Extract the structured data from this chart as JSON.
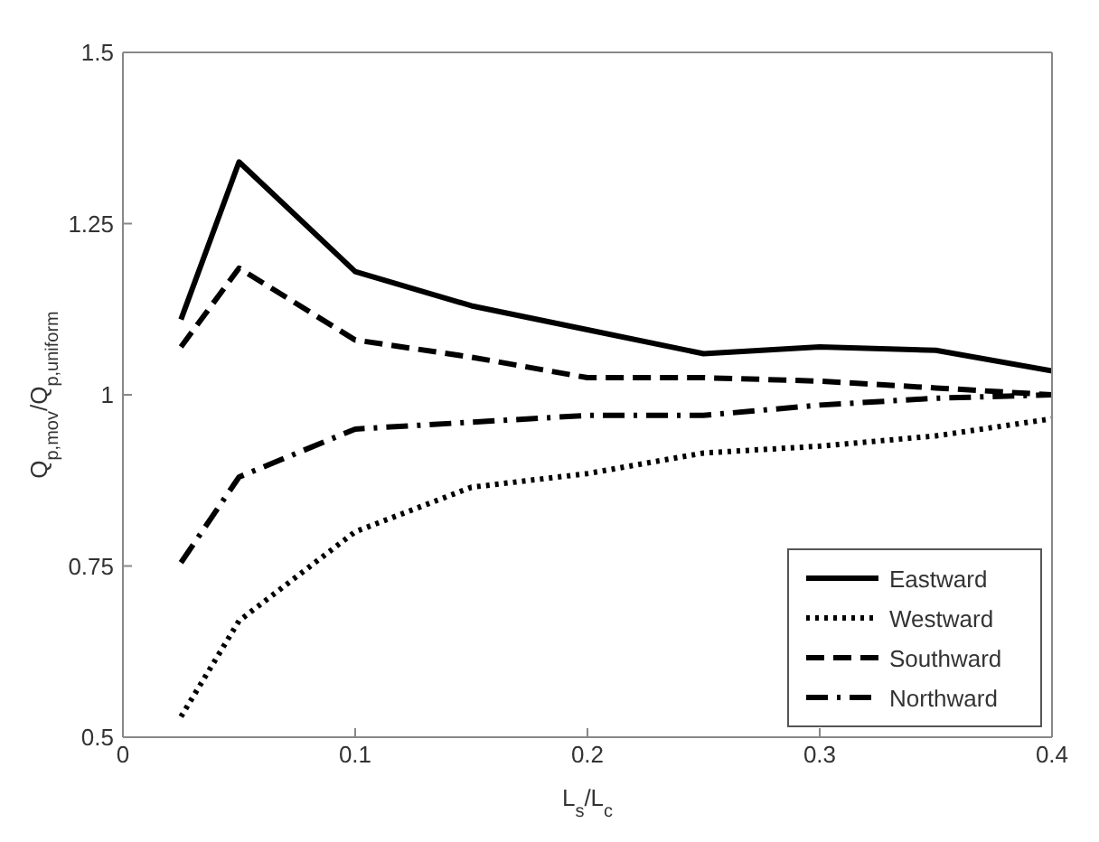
{
  "chart_data": {
    "type": "line",
    "xlabel": "L$_{s}$/L$_{c}$",
    "ylabel": "Q$_{p,mov}$/Q$_{p,uniform}$",
    "x": [
      0.025,
      0.05,
      0.1,
      0.15,
      0.2,
      0.25,
      0.3,
      0.35,
      0.4
    ],
    "xlim": [
      0,
      0.4
    ],
    "xticks": [
      0,
      0.1,
      0.2,
      0.3,
      0.4
    ],
    "ylim": [
      0.5,
      1.5
    ],
    "yticks": [
      0.5,
      0.75,
      1,
      1.25,
      1.5
    ],
    "grid": false,
    "legend": "bottom right",
    "marker": "none",
    "series": [
      {
        "name": "Eastward",
        "color": "#000000",
        "line_style": "solid",
        "values": [
          1.11,
          1.34,
          1.18,
          1.13,
          1.095,
          1.06,
          1.07,
          1.065,
          1.035
        ]
      },
      {
        "name": "Westward",
        "color": "#000000",
        "line_style": "dotted",
        "values": [
          0.53,
          0.67,
          0.8,
          0.865,
          0.885,
          0.915,
          0.925,
          0.94,
          0.965
        ]
      },
      {
        "name": "Southward",
        "color": "#000000",
        "line_style": "dashed",
        "values": [
          1.07,
          1.185,
          1.08,
          1.055,
          1.025,
          1.025,
          1.02,
          1.01,
          1.0
        ]
      },
      {
        "name": "Northward",
        "color": "#000000",
        "line_style": "dashdot",
        "values": [
          0.755,
          0.88,
          0.95,
          0.96,
          0.97,
          0.97,
          0.985,
          0.995,
          1.0
        ]
      }
    ]
  }
}
